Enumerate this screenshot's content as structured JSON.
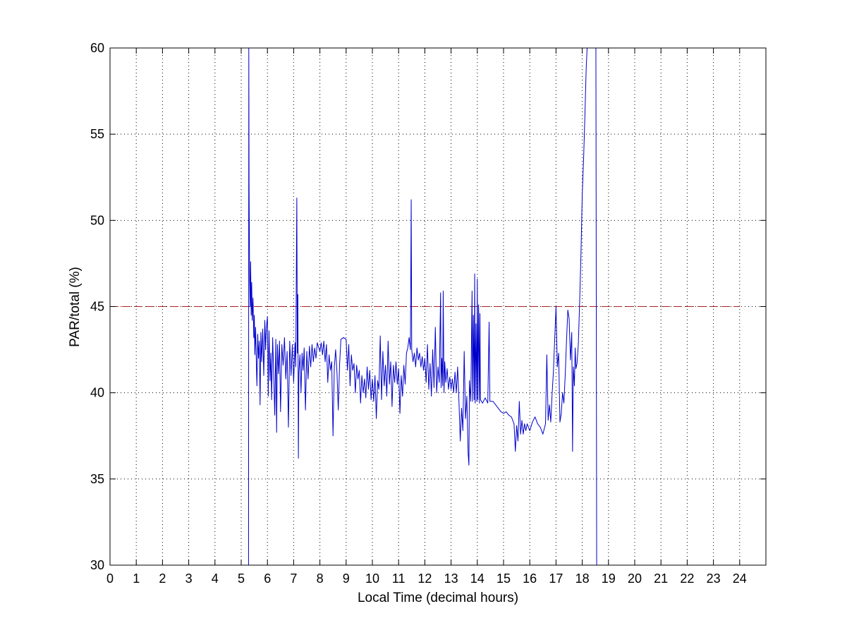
{
  "chart_data": {
    "type": "line",
    "title": "",
    "xlabel": "Local Time (decimal hours)",
    "ylabel": "PAR/total (%)",
    "xlim": [
      0,
      25
    ],
    "ylim": [
      30,
      60
    ],
    "x_ticks": [
      0,
      1,
      2,
      3,
      4,
      5,
      6,
      7,
      8,
      9,
      10,
      11,
      12,
      13,
      14,
      15,
      16,
      17,
      18,
      19,
      20,
      21,
      22,
      23,
      24
    ],
    "y_ticks": [
      30,
      35,
      40,
      45,
      50,
      55,
      60
    ],
    "grid": true,
    "grid_style": "dotted",
    "reference_line": {
      "y": 45,
      "x_range": [
        0,
        24
      ],
      "color": "#aa2222",
      "style": "dashed"
    },
    "series": [
      {
        "color": "#0000cc",
        "points": [
          [
            5.28,
            30
          ],
          [
            5.29,
            60
          ],
          [
            5.3,
            52
          ],
          [
            5.32,
            47
          ],
          [
            5.34,
            45
          ],
          [
            5.36,
            47.6
          ],
          [
            5.38,
            44.5
          ],
          [
            5.4,
            46.4
          ],
          [
            5.42,
            44.2
          ],
          [
            5.45,
            45.5
          ],
          [
            5.48,
            43.2
          ],
          [
            5.5,
            44.5
          ],
          [
            5.52,
            42.2
          ],
          [
            5.55,
            43.8
          ],
          [
            5.58,
            41.5
          ],
          [
            5.6,
            40.4
          ],
          [
            5.63,
            43.4
          ],
          [
            5.66,
            42
          ],
          [
            5.69,
            43
          ],
          [
            5.72,
            39.3
          ],
          [
            5.75,
            43.5
          ],
          [
            5.78,
            41.8
          ],
          [
            5.82,
            43.7
          ],
          [
            5.86,
            41
          ],
          [
            5.9,
            44.2
          ],
          [
            5.93,
            42.5
          ],
          [
            5.96,
            43.8
          ],
          [
            6.0,
            44.4
          ],
          [
            6.03,
            39.8
          ],
          [
            6.06,
            43.6
          ],
          [
            6.1,
            40.7
          ],
          [
            6.13,
            42.3
          ],
          [
            6.16,
            39.6
          ],
          [
            6.2,
            43.2
          ],
          [
            6.24,
            41
          ],
          [
            6.28,
            38.7
          ],
          [
            6.32,
            43.1
          ],
          [
            6.35,
            37.7
          ],
          [
            6.38,
            42.8
          ],
          [
            6.42,
            41.1
          ],
          [
            6.46,
            43
          ],
          [
            6.5,
            38.9
          ],
          [
            6.55,
            42.8
          ],
          [
            6.6,
            41.6
          ],
          [
            6.65,
            43.2
          ],
          [
            6.7,
            40.8
          ],
          [
            6.75,
            42.4
          ],
          [
            6.8,
            38
          ],
          [
            6.85,
            43
          ],
          [
            6.9,
            41
          ],
          [
            6.95,
            42.8
          ],
          [
            7.0,
            40.6
          ],
          [
            7.05,
            42.9
          ],
          [
            7.08,
            41.5
          ],
          [
            7.12,
            51.3
          ],
          [
            7.14,
            42.3
          ],
          [
            7.16,
            45.7
          ],
          [
            7.18,
            36.2
          ],
          [
            7.2,
            41.2
          ],
          [
            7.24,
            42.2
          ],
          [
            7.28,
            40
          ],
          [
            7.32,
            42.3
          ],
          [
            7.36,
            41.3
          ],
          [
            7.4,
            42.6
          ],
          [
            7.45,
            39
          ],
          [
            7.5,
            42.4
          ],
          [
            7.55,
            40.8
          ],
          [
            7.6,
            42.7
          ],
          [
            7.65,
            41.5
          ],
          [
            7.7,
            42.8
          ],
          [
            7.75,
            41.8
          ],
          [
            7.8,
            42.6
          ],
          [
            7.85,
            42
          ],
          [
            7.9,
            42.9
          ],
          [
            8.0,
            42.4
          ],
          [
            8.05,
            42.9
          ],
          [
            8.1,
            42.2
          ],
          [
            8.15,
            43
          ],
          [
            8.2,
            41.8
          ],
          [
            8.25,
            42.8
          ],
          [
            8.3,
            40.6
          ],
          [
            8.35,
            42.2
          ],
          [
            8.4,
            41.3
          ],
          [
            8.45,
            41.8
          ],
          [
            8.5,
            37.5
          ],
          [
            8.55,
            41.5
          ],
          [
            8.6,
            42.5
          ],
          [
            8.65,
            41.2
          ],
          [
            8.7,
            39
          ],
          [
            8.75,
            41.6
          ],
          [
            8.8,
            43.1
          ],
          [
            8.9,
            43.2
          ],
          [
            9.0,
            43.1
          ],
          [
            9.05,
            41.3
          ],
          [
            9.1,
            42.8
          ],
          [
            9.15,
            40.4
          ],
          [
            9.2,
            42.2
          ],
          [
            9.25,
            41.3
          ],
          [
            9.3,
            41.7
          ],
          [
            9.35,
            40
          ],
          [
            9.4,
            41.6
          ],
          [
            9.45,
            40.8
          ],
          [
            9.5,
            41.3
          ],
          [
            9.55,
            39.4
          ],
          [
            9.6,
            41
          ],
          [
            9.65,
            40
          ],
          [
            9.7,
            40.8
          ],
          [
            9.75,
            39.7
          ],
          [
            9.8,
            41.5
          ],
          [
            9.85,
            40.2
          ],
          [
            9.9,
            41.3
          ],
          [
            9.95,
            39.6
          ],
          [
            10.0,
            40.8
          ],
          [
            10.05,
            39.5
          ],
          [
            10.1,
            41
          ],
          [
            10.15,
            38.5
          ],
          [
            10.2,
            40.7
          ],
          [
            10.25,
            40.2
          ],
          [
            10.3,
            43.3
          ],
          [
            10.35,
            39.6
          ],
          [
            10.4,
            42.4
          ],
          [
            10.45,
            40.4
          ],
          [
            10.5,
            41.6
          ],
          [
            10.55,
            39.8
          ],
          [
            10.6,
            43
          ],
          [
            10.65,
            40.5
          ],
          [
            10.7,
            41.8
          ],
          [
            10.75,
            39.2
          ],
          [
            10.8,
            41.6
          ],
          [
            10.85,
            40.6
          ],
          [
            10.9,
            41.8
          ],
          [
            10.95,
            40.5
          ],
          [
            11.0,
            41.4
          ],
          [
            11.05,
            38.8
          ],
          [
            11.1,
            41
          ],
          [
            11.15,
            39.8
          ],
          [
            11.2,
            41.6
          ],
          [
            11.25,
            40.5
          ],
          [
            11.3,
            42.3
          ],
          [
            11.35,
            42.6
          ],
          [
            11.4,
            43.2
          ],
          [
            11.45,
            42.5
          ],
          [
            11.48,
            51.2
          ],
          [
            11.5,
            42.5
          ],
          [
            11.55,
            41.8
          ],
          [
            11.6,
            42.3
          ],
          [
            11.65,
            41.5
          ],
          [
            11.7,
            42.6
          ],
          [
            11.75,
            41.9
          ],
          [
            11.8,
            42.3
          ],
          [
            11.85,
            41.5
          ],
          [
            11.9,
            42.1
          ],
          [
            11.95,
            41.3
          ],
          [
            12.0,
            42
          ],
          [
            12.05,
            40.6
          ],
          [
            12.1,
            42.8
          ],
          [
            12.15,
            40.2
          ],
          [
            12.2,
            41.7
          ],
          [
            12.25,
            39.8
          ],
          [
            12.3,
            42.5
          ],
          [
            12.35,
            40.3
          ],
          [
            12.4,
            43.8
          ],
          [
            12.45,
            40
          ],
          [
            12.5,
            41.5
          ],
          [
            12.55,
            40.6
          ],
          [
            12.6,
            45.8
          ],
          [
            12.62,
            40.3
          ],
          [
            12.65,
            42
          ],
          [
            12.68,
            40.4
          ],
          [
            12.7,
            45.9
          ],
          [
            12.73,
            40
          ],
          [
            12.76,
            41.8
          ],
          [
            12.8,
            40.6
          ],
          [
            12.85,
            41.4
          ],
          [
            12.9,
            40.2
          ],
          [
            12.95,
            40.9
          ],
          [
            13.0,
            40.2
          ],
          [
            13.05,
            40.8
          ],
          [
            13.1,
            40
          ],
          [
            13.15,
            41.2
          ],
          [
            13.2,
            40
          ],
          [
            13.25,
            41.5
          ],
          [
            13.3,
            39.5
          ],
          [
            13.35,
            37.2
          ],
          [
            13.4,
            39.1
          ],
          [
            13.45,
            37.8
          ],
          [
            13.5,
            42.4
          ],
          [
            13.55,
            38.5
          ],
          [
            13.6,
            39.8
          ],
          [
            13.65,
            36.5
          ],
          [
            13.68,
            35.8
          ],
          [
            13.7,
            40.7
          ],
          [
            13.75,
            39.5
          ],
          [
            13.8,
            45.9
          ],
          [
            13.82,
            39.5
          ],
          [
            13.85,
            44.5
          ],
          [
            13.88,
            39.6
          ],
          [
            13.9,
            46.9
          ],
          [
            13.92,
            39.4
          ],
          [
            13.95,
            44
          ],
          [
            13.98,
            39.5
          ],
          [
            14.0,
            46.6
          ],
          [
            14.02,
            39.6
          ],
          [
            14.05,
            45.1
          ],
          [
            14.08,
            39.4
          ],
          [
            14.1,
            44.6
          ],
          [
            14.12,
            39.6
          ],
          [
            14.2,
            39.4
          ],
          [
            14.3,
            39.7
          ],
          [
            14.4,
            39.4
          ],
          [
            14.45,
            44.1
          ],
          [
            14.48,
            39.5
          ],
          [
            14.6,
            39.5
          ],
          [
            14.7,
            39.3
          ],
          [
            14.8,
            39.1
          ],
          [
            14.9,
            38.9
          ],
          [
            15.0,
            38.8
          ],
          [
            15.1,
            38.9
          ],
          [
            15.2,
            38.7
          ],
          [
            15.3,
            38.6
          ],
          [
            15.4,
            38.2
          ],
          [
            15.45,
            36.6
          ],
          [
            15.5,
            38.1
          ],
          [
            15.55,
            37.2
          ],
          [
            15.6,
            39.5
          ],
          [
            15.65,
            37.6
          ],
          [
            15.7,
            38.4
          ],
          [
            15.75,
            37.6
          ],
          [
            15.8,
            38.2
          ],
          [
            15.85,
            37.8
          ],
          [
            15.9,
            38.2
          ],
          [
            16.0,
            37.8
          ],
          [
            16.1,
            38.3
          ],
          [
            16.2,
            38.6
          ],
          [
            16.3,
            38.2
          ],
          [
            16.4,
            38
          ],
          [
            16.5,
            37.6
          ],
          [
            16.6,
            38.2
          ],
          [
            16.65,
            42.2
          ],
          [
            16.7,
            38.4
          ],
          [
            16.75,
            39.3
          ],
          [
            16.8,
            38.3
          ],
          [
            16.85,
            39.9
          ],
          [
            16.9,
            41.2
          ],
          [
            16.95,
            43.1
          ],
          [
            17.0,
            45
          ],
          [
            17.05,
            41.5
          ],
          [
            17.1,
            42.3
          ],
          [
            17.15,
            38.3
          ],
          [
            17.2,
            38.8
          ],
          [
            17.25,
            40
          ],
          [
            17.3,
            39.4
          ],
          [
            17.35,
            41
          ],
          [
            17.4,
            43
          ],
          [
            17.45,
            44.8
          ],
          [
            17.5,
            44.3
          ],
          [
            17.55,
            41.9
          ],
          [
            17.6,
            43.5
          ],
          [
            17.63,
            36.6
          ],
          [
            17.66,
            41.5
          ],
          [
            17.7,
            40.4
          ],
          [
            17.73,
            42.6
          ],
          [
            17.76,
            41.4
          ],
          [
            17.8,
            41.7
          ],
          [
            17.85,
            42.8
          ],
          [
            17.9,
            45.2
          ],
          [
            17.95,
            48
          ],
          [
            18.0,
            51.5
          ],
          [
            18.05,
            53.5
          ],
          [
            18.1,
            56
          ],
          [
            18.15,
            58.8
          ],
          [
            18.2,
            60.5
          ]
        ]
      },
      {
        "color": "#0000cc",
        "points": [
          [
            18.52,
            60.5
          ],
          [
            18.55,
            30
          ]
        ]
      }
    ]
  }
}
